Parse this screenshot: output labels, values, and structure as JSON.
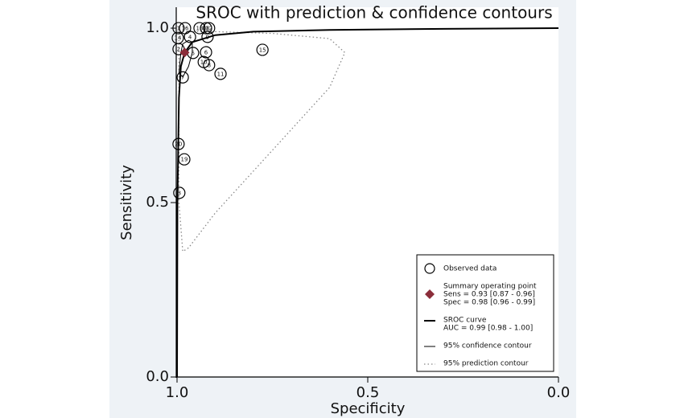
{
  "chart_data": {
    "type": "scatter",
    "title": "SROC with prediction & confidence contours",
    "x_label": "Specificity",
    "y_label": "Sensitivity",
    "xlim": [
      1,
      0
    ],
    "ylim": [
      0,
      1.06
    ],
    "xticks": [
      {
        "value": 1,
        "label": "1.0"
      },
      {
        "value": 0.5,
        "label": "0.5"
      },
      {
        "value": 0,
        "label": "0.0"
      }
    ],
    "yticks": [
      {
        "value": 0,
        "label": "0.0"
      },
      {
        "value": 0.5,
        "label": "0.5"
      },
      {
        "value": 1,
        "label": "1.0"
      }
    ],
    "series": [
      {
        "name": "Observed data",
        "marker": "circle",
        "color": "#000000",
        "labels": [
          "1",
          "16",
          "13",
          "18",
          "12",
          "14",
          "4",
          "9",
          "2",
          "5",
          "6",
          "10",
          "8",
          "11",
          "15",
          "7",
          "20",
          "19",
          "3"
        ],
        "x": [
          0.996,
          0.979,
          0.941,
          0.924,
          0.916,
          0.998,
          0.966,
          0.92,
          0.996,
          0.958,
          0.924,
          0.93,
          0.916,
          0.886,
          0.776,
          0.985,
          0.996,
          0.981,
          0.994
        ],
        "values": [
          1.0,
          1.0,
          1.0,
          1.0,
          1.0,
          0.972,
          0.975,
          0.975,
          0.94,
          0.929,
          0.931,
          0.903,
          0.894,
          0.869,
          0.938,
          0.859,
          0.668,
          0.624,
          0.528
        ]
      },
      {
        "name": "Summary operating point",
        "marker": "diamond",
        "color": "#8b2d3a",
        "details": [
          "Sens = 0.93 [0.87 - 0.96]",
          "Spec = 0.98 [0.96 - 0.99]"
        ],
        "x": [
          0.98
        ],
        "values": [
          0.93
        ]
      },
      {
        "name": "SROC curve",
        "marker": "line",
        "color": "#000000",
        "width": 2,
        "details": [
          "AUC = 0.99 [0.98 - 1.00]"
        ],
        "x": [
          1.0,
          0.999,
          0.995,
          0.99,
          0.98,
          0.96,
          0.9,
          0.8,
          0.6,
          0.3,
          0.0
        ],
        "values": [
          0,
          0.5,
          0.8,
          0.89,
          0.93,
          0.96,
          0.98,
          0.99,
          0.995,
          0.998,
          1.0
        ]
      },
      {
        "name": "95% confidence contour",
        "marker": "line",
        "color": "#000000",
        "width": 1,
        "x": [
          0.995,
          0.99,
          0.985,
          0.97,
          0.96,
          0.96,
          0.97,
          0.985,
          0.995
        ],
        "values": [
          0.87,
          0.93,
          0.955,
          0.965,
          0.96,
          0.93,
          0.89,
          0.86,
          0.87
        ]
      },
      {
        "name": "95% prediction contour",
        "marker": "line",
        "color": "#888888",
        "width": 1.3,
        "dash": "dotted",
        "x": [
          0.995,
          0.9,
          0.75,
          0.6,
          0.56,
          0.6,
          0.75,
          0.9,
          0.97,
          0.985,
          0.995,
          0.995
        ],
        "values": [
          0.99,
          0.99,
          0.985,
          0.97,
          0.93,
          0.83,
          0.65,
          0.47,
          0.37,
          0.36,
          0.5,
          0.99
        ]
      }
    ]
  }
}
